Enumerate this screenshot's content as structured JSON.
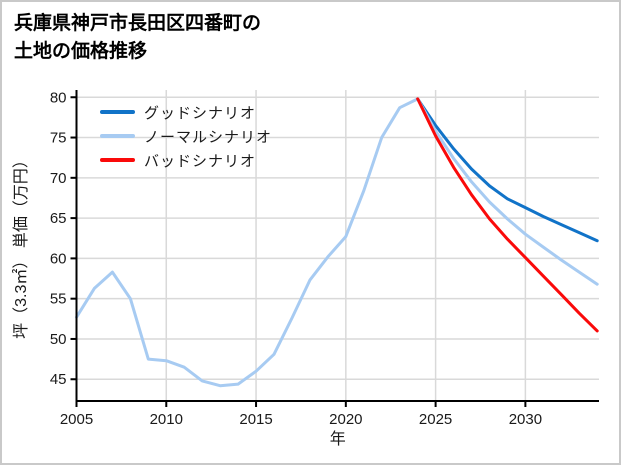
{
  "title": {
    "line1": "兵庫県神戸市長田区四番町の",
    "line2": "土地の価格推移"
  },
  "legend": {
    "items": [
      {
        "label": "グッドシナリオ",
        "color": "#1173c8"
      },
      {
        "label": "ノーマルシナリオ",
        "color": "#a7cbf2"
      },
      {
        "label": "バッドシナリオ",
        "color": "#fa0a0a"
      }
    ]
  },
  "chart_data": {
    "type": "line",
    "title": "兵庫県神戸市長田区四番町の土地の価格推移",
    "xlabel": "年",
    "ylabel": "坪（3.3㎡） 単価（万円）",
    "xlim": [
      2005,
      2034.1
    ],
    "ylim": [
      42.3,
      80.9
    ],
    "xticks": [
      2005,
      2010,
      2015,
      2020,
      2025,
      2030
    ],
    "yticks": [
      45,
      50,
      55,
      60,
      65,
      70,
      75,
      80
    ],
    "grid": true,
    "legend_position": "upper left",
    "colors": {
      "history": "#a7cbf2",
      "grid": "#d9d9d9",
      "axis": "#000000",
      "tick_text": "#1a1a1a"
    },
    "series": [
      {
        "id": "history",
        "label": "",
        "in_legend": false,
        "color": "#a7cbf2",
        "x": [
          2005,
          2006,
          2007,
          2008,
          2009,
          2010,
          2011,
          2012,
          2013,
          2014,
          2015,
          2016,
          2017,
          2018,
          2019,
          2020,
          2021,
          2022,
          2023,
          2024
        ],
        "values": [
          52.7,
          56.3,
          58.3,
          55.0,
          47.5,
          47.3,
          46.5,
          44.8,
          44.2,
          44.4,
          46.0,
          48.1,
          52.6,
          57.3,
          60.2,
          62.7,
          68.4,
          75.0,
          78.7,
          79.8
        ]
      },
      {
        "id": "good",
        "label": "グッドシナリオ",
        "in_legend": true,
        "color": "#1173c8",
        "x": [
          2024,
          2025,
          2026,
          2027,
          2028,
          2029,
          2030,
          2031,
          2032,
          2033,
          2034
        ],
        "values": [
          79.8,
          76.5,
          73.6,
          71.1,
          69.0,
          67.4,
          66.3,
          65.2,
          64.2,
          63.2,
          62.2
        ]
      },
      {
        "id": "normal",
        "label": "ノーマルシナリオ",
        "in_legend": true,
        "color": "#a7cbf2",
        "x": [
          2024,
          2025,
          2026,
          2027,
          2028,
          2029,
          2030,
          2031,
          2032,
          2033,
          2034
        ],
        "values": [
          79.8,
          75.8,
          72.4,
          69.5,
          67.0,
          64.9,
          63.0,
          61.4,
          59.8,
          58.3,
          56.8
        ]
      },
      {
        "id": "bad",
        "label": "バッドシナリオ",
        "in_legend": true,
        "color": "#fa0a0a",
        "x": [
          2024,
          2025,
          2026,
          2027,
          2028,
          2029,
          2030,
          2031,
          2032,
          2033,
          2034
        ],
        "values": [
          79.8,
          75.2,
          71.3,
          67.9,
          64.9,
          62.4,
          60.1,
          57.8,
          55.5,
          53.2,
          51.0
        ]
      }
    ]
  }
}
